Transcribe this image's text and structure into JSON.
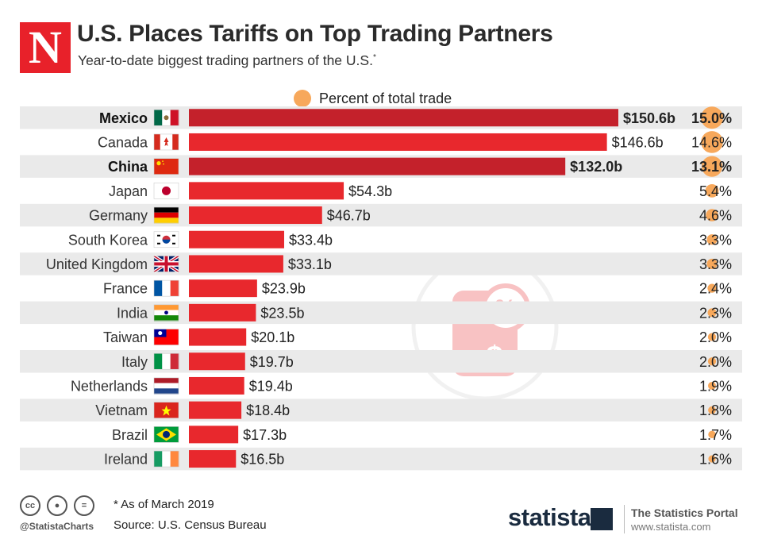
{
  "header": {
    "logo_letter": "N",
    "title": "U.S. Places Tariffs on Top Trading Partners",
    "subtitle": "Year-to-date biggest trading partners of the U.S.",
    "subtitle_mark": "*"
  },
  "legend": {
    "label": "Percent of total trade",
    "color": "#f7a85b"
  },
  "chart_data": {
    "type": "bar",
    "orientation": "horizontal",
    "title": "U.S. Places Tariffs on Top Trading Partners",
    "categories": [
      "Mexico",
      "Canada",
      "China",
      "Japan",
      "Germany",
      "South Korea",
      "United Kingdom",
      "France",
      "India",
      "Taiwan",
      "Italy",
      "Netherlands",
      "Vietnam",
      "Brazil",
      "Ireland"
    ],
    "values": [
      150.6,
      146.6,
      132.0,
      54.3,
      46.7,
      33.4,
      33.1,
      23.9,
      23.5,
      20.1,
      19.7,
      19.4,
      18.4,
      17.3,
      16.5
    ],
    "value_labels": [
      "$150.6b",
      "$146.6b",
      "$132.0b",
      "$54.3b",
      "$46.7b",
      "$33.4b",
      "$33.1b",
      "$23.9b",
      "$23.5b",
      "$20.1b",
      "$19.7b",
      "$19.4b",
      "$18.4b",
      "$17.3b",
      "$16.5b"
    ],
    "percent_of_total": [
      15.0,
      14.6,
      13.1,
      5.4,
      4.6,
      3.3,
      3.3,
      2.4,
      2.3,
      2.0,
      2.0,
      1.9,
      1.8,
      1.7,
      1.6
    ],
    "percent_labels": [
      "15.0%",
      "14.6%",
      "13.1%",
      "5.4%",
      "4.6%",
      "3.3%",
      "3.3%",
      "2.4%",
      "2.3%",
      "2.0%",
      "2.0%",
      "1.9%",
      "1.8%",
      "1.7%",
      "1.6%"
    ],
    "highlighted": [
      "Mexico",
      "China"
    ],
    "flags": [
      "mx",
      "ca",
      "cn",
      "jp",
      "de",
      "kr",
      "gb",
      "fr",
      "in",
      "tw",
      "it",
      "nl",
      "vn",
      "br",
      "ie"
    ],
    "xlim": [
      0,
      150.6
    ],
    "colors": {
      "bar": "#e8282d",
      "bar_highlight": "#c4212b",
      "percent_bubble": "#f7a85b",
      "row_stripe": "#eaeaea"
    }
  },
  "footer": {
    "note": "* As of March 2019",
    "source": "Source: U.S. Census Bureau",
    "handle": "@StatistaCharts",
    "license_icons": [
      "cc",
      "by",
      "nd"
    ],
    "brand": "statista",
    "portal_name": "The Statistics Portal",
    "portal_url": "www.statista.com"
  }
}
